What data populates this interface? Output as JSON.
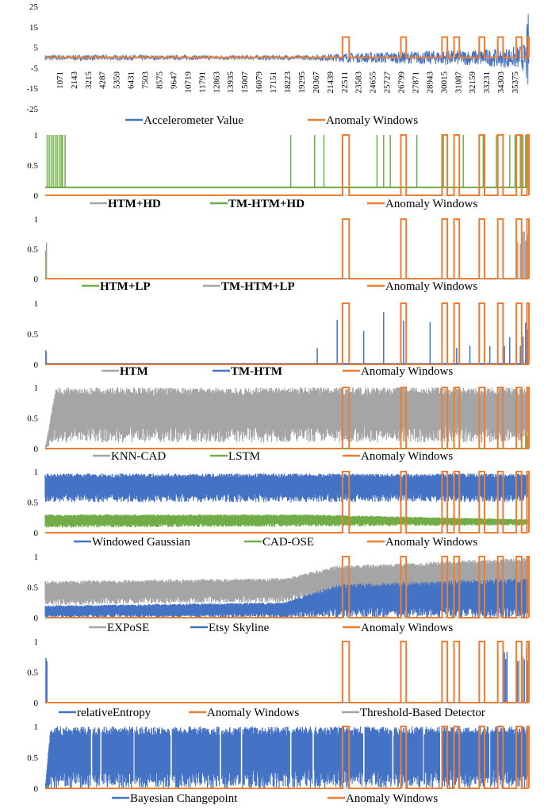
{
  "chart_data": [
    {
      "type": "line",
      "ylim": [
        -25,
        25
      ],
      "yticks": [
        25,
        15,
        5,
        -5,
        -15,
        -25
      ],
      "ytick_labels": [
        "25",
        "15",
        "5",
        "-5",
        "-15",
        "-25"
      ],
      "x_range": [
        1,
        36447
      ],
      "xtick_values": [
        1071,
        2143,
        3215,
        4287,
        5359,
        6431,
        7503,
        8575,
        9647,
        10719,
        11791,
        12863,
        13935,
        15007,
        16079,
        17151,
        18223,
        19295,
        20367,
        21439,
        22511,
        23583,
        24655,
        25727,
        26799,
        27871,
        28943,
        30015,
        31087,
        32159,
        33231,
        34303,
        35375
      ],
      "xtick_labels": [
        "1071",
        "2143",
        "3215",
        "4287",
        "5359",
        "6431",
        "7503",
        "8575",
        "9647",
        "10719",
        "11791",
        "12863",
        "13935",
        "15007",
        "16079",
        "17151",
        "18223",
        "19295",
        "20367",
        "21439",
        "22511",
        "23583",
        "24655",
        "25727",
        "26799",
        "27871",
        "28943",
        "30015",
        "31087",
        "32159",
        "33231",
        "34303",
        "35375"
      ],
      "anomaly_windows": [
        [
          22400,
          22900
        ],
        [
          26800,
          27200
        ],
        [
          29900,
          30300
        ],
        [
          30800,
          31200
        ],
        [
          32700,
          33100
        ],
        [
          34100,
          34500
        ],
        [
          35500,
          35900
        ],
        [
          36300,
          36447
        ]
      ],
      "anomaly_high": 10,
      "anomaly_low": 0,
      "series": [
        {
          "name": "Accelerometer Value",
          "color": "#4472c4",
          "kind": "signal",
          "x": [
            0,
            5000,
            10000,
            15000,
            20000,
            22000,
            25000,
            28000,
            30000,
            32000,
            34000,
            35500,
            36200,
            36447
          ],
          "amplitude": [
            1.5,
            1.4,
            1.2,
            1.2,
            1.3,
            2.2,
            3.0,
            3.5,
            4.0,
            4.2,
            5.0,
            6.0,
            8.0,
            27.0
          ]
        },
        {
          "name": "Anomaly Windows",
          "color": "#ed7d31",
          "kind": "windows"
        }
      ],
      "legend": [
        {
          "label": "Accelerometer Value",
          "color": "#4472c4",
          "bold": false
        },
        {
          "label": "Anomaly Windows",
          "color": "#ed7d31",
          "bold": false
        }
      ]
    },
    {
      "type": "line",
      "ylim": [
        0,
        1
      ],
      "yticks": [
        1,
        0.5,
        0
      ],
      "ytick_labels": [
        "1",
        "0.5",
        "0"
      ],
      "x_range": [
        1,
        36447
      ],
      "anomaly_windows": [
        [
          22400,
          22900
        ],
        [
          26800,
          27200
        ],
        [
          29900,
          30300
        ],
        [
          30800,
          31200
        ],
        [
          32700,
          33100
        ],
        [
          34100,
          34500
        ],
        [
          35500,
          35900
        ],
        [
          36300,
          36447
        ]
      ],
      "anomaly_high": 1,
      "anomaly_low": 0,
      "series": [
        {
          "name": "HTM+HD",
          "color": "#a5a5a5",
          "kind": "baseline",
          "x": [
            0,
            36447
          ],
          "y": [
            0.13,
            0.13
          ]
        },
        {
          "name": "TM-HTM+HD",
          "color": "#70ad47",
          "kind": "spikes",
          "baseline": 0.13,
          "x": [
            0,
            36447
          ],
          "spikes": [
            150,
            300,
            450,
            600,
            750,
            900,
            1050,
            1200,
            1300,
            1500,
            18500,
            20300,
            21000,
            22400,
            25000,
            25500,
            26000,
            28000,
            30000,
            31500,
            33000,
            34000,
            35000,
            35400,
            35800,
            36000,
            36200,
            36400
          ]
        },
        {
          "name": "Anomaly Windows",
          "color": "#ed7d31",
          "kind": "windows"
        }
      ],
      "legend": [
        {
          "label": "HTM+HD",
          "color": "#a5a5a5",
          "bold": true
        },
        {
          "label": "TM-HTM+HD",
          "color": "#70ad47",
          "bold": true
        },
        {
          "label": "Anomaly Windows",
          "color": "#ed7d31",
          "bold": false
        }
      ]
    },
    {
      "type": "line",
      "ylim": [
        0,
        1
      ],
      "yticks": [
        1,
        0.5,
        0
      ],
      "ytick_labels": [
        "1",
        "0.5",
        "0"
      ],
      "x_range": [
        1,
        36447
      ],
      "anomaly_windows": [
        [
          22400,
          22900
        ],
        [
          26800,
          27200
        ],
        [
          29900,
          30300
        ],
        [
          30800,
          31200
        ],
        [
          32700,
          33100
        ],
        [
          34100,
          34500
        ],
        [
          35500,
          35900
        ],
        [
          36300,
          36447
        ]
      ],
      "anomaly_high": 1,
      "anomaly_low": 0,
      "series": [
        {
          "name": "HTM+LP",
          "color": "#70ad47",
          "kind": "spikes",
          "baseline": 0.0,
          "x": [
            0,
            36447
          ],
          "spikes": [
            50
          ],
          "spike_height": 0.55
        },
        {
          "name": "TM-HTM+LP",
          "color": "#a5a5a5",
          "kind": "noise",
          "x": [
            0,
            36447
          ],
          "spikes": [
            100,
            35600,
            35800,
            36000,
            36100,
            36200,
            36300,
            36400
          ],
          "spike_height": 0.95
        },
        {
          "name": "Anomaly Windows",
          "color": "#ed7d31",
          "kind": "windows"
        }
      ],
      "legend": [
        {
          "label": "HTM+LP",
          "color": "#70ad47",
          "bold": true
        },
        {
          "label": "TM-HTM+LP",
          "color": "#a5a5a5",
          "bold": true
        },
        {
          "label": "Anomaly Windows",
          "color": "#ed7d31",
          "bold": false
        }
      ]
    },
    {
      "type": "line",
      "ylim": [
        0,
        1
      ],
      "yticks": [
        1,
        0.5,
        0
      ],
      "ytick_labels": [
        "1",
        "0.5",
        "0"
      ],
      "x_range": [
        1,
        36447
      ],
      "anomaly_windows": [
        [
          22400,
          22900
        ],
        [
          26800,
          27200
        ],
        [
          29900,
          30300
        ],
        [
          30800,
          31200
        ],
        [
          32700,
          33100
        ],
        [
          34100,
          34500
        ],
        [
          35500,
          35900
        ],
        [
          36300,
          36447
        ]
      ],
      "anomaly_high": 1,
      "anomaly_low": 0,
      "series": [
        {
          "name": "HTM",
          "color": "#a5a5a5",
          "kind": "spikes",
          "baseline": 0.0,
          "x": [
            0,
            36447
          ],
          "spikes": [
            100
          ],
          "spike_height": 0.3
        },
        {
          "name": "TM-HTM",
          "color": "#4472c4",
          "kind": "spikes",
          "baseline": 0.01,
          "x": [
            0,
            36447
          ],
          "spikes": [
            50,
            20500,
            22000,
            24000,
            25500,
            27000,
            29000,
            31000,
            32000,
            33500,
            34600,
            35000,
            35500,
            35800,
            36000,
            36200,
            36400
          ],
          "spike_height": 0.9
        },
        {
          "name": "Anomaly Windows",
          "color": "#ed7d31",
          "kind": "windows"
        }
      ],
      "legend": [
        {
          "label": "HTM",
          "color": "#a5a5a5",
          "bold": true
        },
        {
          "label": "TM-HTM",
          "color": "#4472c4",
          "bold": true
        },
        {
          "label": "Anomaly Windows",
          "color": "#ed7d31",
          "bold": false
        }
      ]
    },
    {
      "type": "line",
      "ylim": [
        0,
        1
      ],
      "yticks": [
        1,
        0.5,
        0
      ],
      "ytick_labels": [
        "1",
        "0.5",
        "0"
      ],
      "x_range": [
        1,
        36447
      ],
      "anomaly_windows": [
        [
          22400,
          22900
        ],
        [
          26800,
          27200
        ],
        [
          29900,
          30300
        ],
        [
          30800,
          31200
        ],
        [
          32700,
          33100
        ],
        [
          34100,
          34500
        ],
        [
          35500,
          35900
        ],
        [
          36300,
          36447
        ]
      ],
      "anomaly_high": 1,
      "anomaly_low": 0,
      "series": [
        {
          "name": "KNN-CAD",
          "color": "#a5a5a5",
          "kind": "band",
          "x": [
            0,
            800,
            36447
          ],
          "low": [
            0.0,
            0.1,
            0.1
          ],
          "high": [
            0.0,
            1.0,
            1.0
          ]
        },
        {
          "name": "LSTM",
          "color": "#70ad47",
          "kind": "spikes",
          "baseline": 0.0,
          "x": [
            0,
            36447
          ],
          "spikes": [
            36200,
            36350
          ],
          "spike_height": 0.3
        },
        {
          "name": "Anomaly Windows",
          "color": "#ed7d31",
          "kind": "windows"
        }
      ],
      "legend": [
        {
          "label": "KNN-CAD",
          "color": "#a5a5a5",
          "bold": false
        },
        {
          "label": "LSTM",
          "color": "#70ad47",
          "bold": false
        },
        {
          "label": "Anomaly Windows",
          "color": "#ed7d31",
          "bold": false
        }
      ]
    },
    {
      "type": "line",
      "ylim": [
        0,
        1
      ],
      "yticks": [
        1,
        0.5,
        0
      ],
      "ytick_labels": [
        "1",
        "0.5",
        "0"
      ],
      "x_range": [
        1,
        36447
      ],
      "anomaly_windows": [
        [
          22400,
          22900
        ],
        [
          26800,
          27200
        ],
        [
          29900,
          30300
        ],
        [
          30800,
          31200
        ],
        [
          32700,
          33100
        ],
        [
          34100,
          34500
        ],
        [
          35500,
          35900
        ],
        [
          36300,
          36447
        ]
      ],
      "anomaly_high": 1,
      "anomaly_low": 0,
      "series": [
        {
          "name": "Windowed Gaussian",
          "color": "#4472c4",
          "kind": "band",
          "x": [
            0,
            36447
          ],
          "low": [
            0.5,
            0.5
          ],
          "high": [
            0.97,
            0.97
          ]
        },
        {
          "name": "CAD-OSE",
          "color": "#70ad47",
          "kind": "band",
          "x": [
            0,
            20000,
            36447
          ],
          "low": [
            0.08,
            0.1,
            0.12
          ],
          "high": [
            0.3,
            0.3,
            0.22
          ]
        },
        {
          "name": "Anomaly Windows",
          "color": "#ed7d31",
          "kind": "windows"
        }
      ],
      "legend": [
        {
          "label": "Windowed Gaussian",
          "color": "#4472c4",
          "bold": false
        },
        {
          "label": "CAD-OSE",
          "color": "#70ad47",
          "bold": false
        },
        {
          "label": "Anomaly Windows",
          "color": "#ed7d31",
          "bold": false
        }
      ]
    },
    {
      "type": "line",
      "ylim": [
        0,
        1
      ],
      "yticks": [
        1,
        0.5,
        0
      ],
      "ytick_labels": [
        "1",
        "0.5",
        "0"
      ],
      "x_range": [
        1,
        36447
      ],
      "anomaly_windows": [
        [
          22400,
          22900
        ],
        [
          26800,
          27200
        ],
        [
          29900,
          30300
        ],
        [
          30800,
          31200
        ],
        [
          32700,
          33100
        ],
        [
          34100,
          34500
        ],
        [
          35500,
          35900
        ],
        [
          36300,
          36447
        ]
      ],
      "anomaly_high": 1,
      "anomaly_low": 0,
      "series": [
        {
          "name": "EXPoSE",
          "color": "#a5a5a5",
          "kind": "band",
          "x": [
            0,
            18000,
            22000,
            36447
          ],
          "low": [
            0.2,
            0.25,
            0.4,
            0.5
          ],
          "high": [
            0.6,
            0.65,
            0.85,
            0.98
          ]
        },
        {
          "name": "Etsy Skyline",
          "color": "#4472c4",
          "kind": "band",
          "x": [
            0,
            18000,
            22000,
            36447
          ],
          "low": [
            0.0,
            0.0,
            0.0,
            0.0
          ],
          "high": [
            0.2,
            0.25,
            0.55,
            0.65
          ]
        },
        {
          "name": "Anomaly Windows",
          "color": "#ed7d31",
          "kind": "windows"
        }
      ],
      "legend": [
        {
          "label": "EXPoSE",
          "color": "#a5a5a5",
          "bold": false
        },
        {
          "label": "Etsy Skyline",
          "color": "#4472c4",
          "bold": false
        },
        {
          "label": "Anomaly Windows",
          "color": "#ed7d31",
          "bold": false
        }
      ]
    },
    {
      "type": "line",
      "ylim": [
        0,
        1
      ],
      "yticks": [
        1,
        0.5,
        0
      ],
      "ytick_labels": [
        "1",
        "0.5",
        "0"
      ],
      "x_range": [
        1,
        36447
      ],
      "anomaly_windows": [
        [
          22400,
          22900
        ],
        [
          26800,
          27200
        ],
        [
          29900,
          30300
        ],
        [
          30800,
          31200
        ],
        [
          32700,
          33100
        ],
        [
          34100,
          34500
        ],
        [
          35500,
          35900
        ],
        [
          36300,
          36447
        ]
      ],
      "anomaly_high": 1,
      "anomaly_low": 0,
      "series": [
        {
          "name": "relativeEntropy",
          "color": "#4472c4",
          "kind": "spikes",
          "baseline": 0.0,
          "x": [
            0,
            36447
          ],
          "spikes": [
            60,
            130,
            34600,
            34700,
            34800,
            35600,
            35900,
            36100,
            36300,
            36400
          ],
          "spike_height": 1.0
        },
        {
          "name": "Anomaly Windows",
          "color": "#ed7d31",
          "kind": "windows"
        },
        {
          "name": "Threshold-Based Detector",
          "color": "#a5a5a5",
          "kind": "spikes",
          "baseline": 0.0,
          "x": [
            0,
            36447
          ],
          "spikes": [
            35700,
            36000,
            36250
          ],
          "spike_height": 1.0
        }
      ],
      "legend": [
        {
          "label": "relativeEntropy",
          "color": "#4472c4",
          "bold": false
        },
        {
          "label": "Anomaly Windows",
          "color": "#ed7d31",
          "bold": false
        },
        {
          "label": "Threshold-Based Detector",
          "color": "#a5a5a5",
          "bold": false
        }
      ]
    },
    {
      "type": "line",
      "ylim": [
        0,
        1
      ],
      "yticks": [
        1,
        0.5,
        0
      ],
      "ytick_labels": [
        "1",
        "0.5",
        "0"
      ],
      "x_range": [
        1,
        36447
      ],
      "anomaly_windows": [
        [
          22400,
          22900
        ],
        [
          26800,
          27200
        ],
        [
          29900,
          30300
        ],
        [
          30800,
          31200
        ],
        [
          32700,
          33100
        ],
        [
          34100,
          34500
        ],
        [
          35500,
          35900
        ],
        [
          36300,
          36447
        ]
      ],
      "anomaly_high": 1,
      "anomaly_low": 0,
      "series": [
        {
          "name": "Bayesian Changepoint",
          "color": "#4472c4",
          "kind": "band",
          "x": [
            0,
            400,
            36447
          ],
          "low": [
            0.0,
            0.0,
            0.0
          ],
          "high": [
            0.0,
            1.0,
            1.0
          ],
          "gaps": [
            3500,
            4200,
            6700,
            9500,
            13200,
            14800,
            18500,
            20200,
            24000,
            26200,
            28500,
            29800,
            33500
          ]
        },
        {
          "name": "Anomaly Windows",
          "color": "#ed7d31",
          "kind": "windows"
        }
      ],
      "legend": [
        {
          "label": "Bayesian Changepoint",
          "color": "#4472c4",
          "bold": false
        },
        {
          "label": "Anomaly Windows",
          "color": "#ed7d31",
          "bold": false
        }
      ]
    }
  ]
}
